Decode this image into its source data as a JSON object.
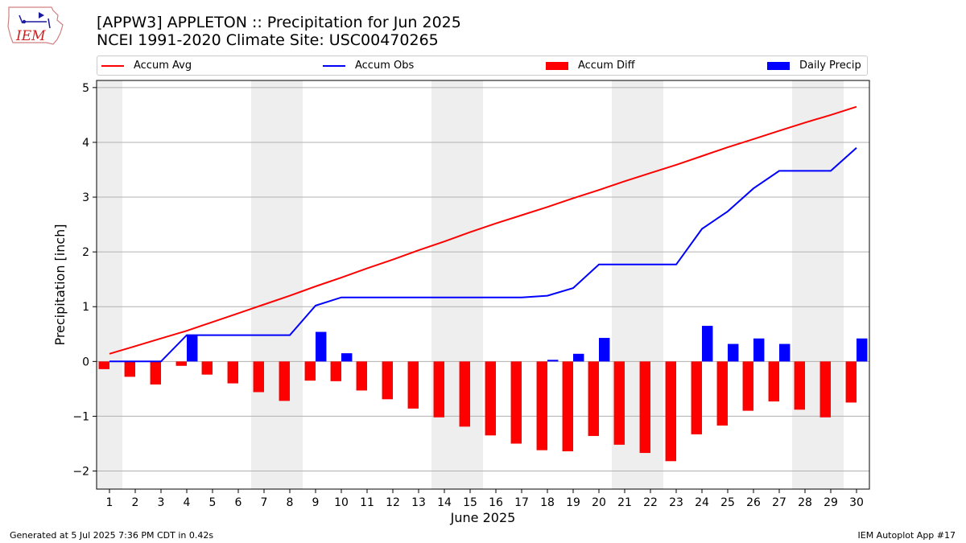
{
  "header": {
    "title_line1": "[APPW3] APPLETON :: Precipitation for Jun 2025",
    "title_line2": "NCEI 1991-2020 Climate Site: USC00470265",
    "logo_text": "IEM"
  },
  "legend": {
    "placement": "top",
    "items": [
      {
        "label": "Accum Avg",
        "kind": "line",
        "color": "#ff0000"
      },
      {
        "label": "Accum Obs",
        "kind": "line",
        "color": "#0000ff"
      },
      {
        "label": "Accum Diff",
        "kind": "bar",
        "color": "#ff0000"
      },
      {
        "label": "Daily Precip",
        "kind": "bar",
        "color": "#0000ff"
      }
    ]
  },
  "footer": {
    "left": "Generated at 5 Jul 2025 7:36 PM CDT in 0.42s",
    "right": "IEM Autoplot App #17"
  },
  "colors": {
    "avg": "#ff0000",
    "obs": "#0000ff",
    "diff": "#ff0000",
    "daily": "#0000ff",
    "weekend_band": "#eeeeee",
    "grid": "#b0b0b0"
  },
  "chart_data": {
    "type": "bar",
    "xlabel": "June 2025",
    "ylabel": "Precipitation [inch]",
    "xlim": [
      0.5,
      30.5
    ],
    "ylim": [
      -2.33,
      5.13
    ],
    "yticks": [
      -2,
      -1,
      0,
      1,
      2,
      3,
      4,
      5
    ],
    "ytick_labels": [
      "−2",
      "−1",
      "0",
      "1",
      "2",
      "3",
      "4",
      "5"
    ],
    "grid": "horizontal",
    "days": [
      1,
      2,
      3,
      4,
      5,
      6,
      7,
      8,
      9,
      10,
      11,
      12,
      13,
      14,
      15,
      16,
      17,
      18,
      19,
      20,
      21,
      22,
      23,
      24,
      25,
      26,
      27,
      28,
      29,
      30
    ],
    "weekend_bands": [
      [
        0.5,
        1.5
      ],
      [
        6.5,
        8.5
      ],
      [
        13.5,
        15.5
      ],
      [
        20.5,
        22.5
      ],
      [
        27.5,
        29.5
      ]
    ],
    "series": [
      {
        "name": "Accum Avg",
        "type": "line",
        "values": [
          0.14,
          0.28,
          0.42,
          0.56,
          0.72,
          0.88,
          1.04,
          1.2,
          1.37,
          1.53,
          1.7,
          1.86,
          2.03,
          2.19,
          2.36,
          2.52,
          2.67,
          2.82,
          2.98,
          3.13,
          3.29,
          3.44,
          3.59,
          3.75,
          3.91,
          4.06,
          4.21,
          4.36,
          4.5,
          4.65
        ]
      },
      {
        "name": "Accum Obs",
        "type": "line",
        "values": [
          0.0,
          0.0,
          0.0,
          0.48,
          0.48,
          0.48,
          0.48,
          0.48,
          1.02,
          1.17,
          1.17,
          1.17,
          1.17,
          1.17,
          1.17,
          1.17,
          1.17,
          1.2,
          1.34,
          1.77,
          1.77,
          1.77,
          1.77,
          2.42,
          2.74,
          3.16,
          3.48,
          3.48,
          3.48,
          3.9
        ]
      },
      {
        "name": "Accum Diff",
        "type": "bar",
        "values": [
          -0.14,
          -0.28,
          -0.42,
          -0.08,
          -0.24,
          -0.4,
          -0.56,
          -0.72,
          -0.35,
          -0.36,
          -0.53,
          -0.69,
          -0.86,
          -1.02,
          -1.19,
          -1.35,
          -1.5,
          -1.62,
          -1.64,
          -1.36,
          -1.52,
          -1.67,
          -1.82,
          -1.33,
          -1.17,
          -0.9,
          -0.73,
          -0.88,
          -1.02,
          -0.75
        ]
      },
      {
        "name": "Daily Precip",
        "type": "bar",
        "values": [
          0.0,
          0.0,
          0.0,
          0.48,
          0.0,
          0.0,
          0.0,
          0.0,
          0.54,
          0.15,
          0.0,
          0.0,
          0.0,
          0.0,
          0.0,
          0.0,
          0.0,
          0.03,
          0.14,
          0.43,
          0.0,
          0.0,
          0.0,
          0.65,
          0.32,
          0.42,
          0.32,
          0.0,
          0.0,
          0.42
        ]
      }
    ]
  }
}
